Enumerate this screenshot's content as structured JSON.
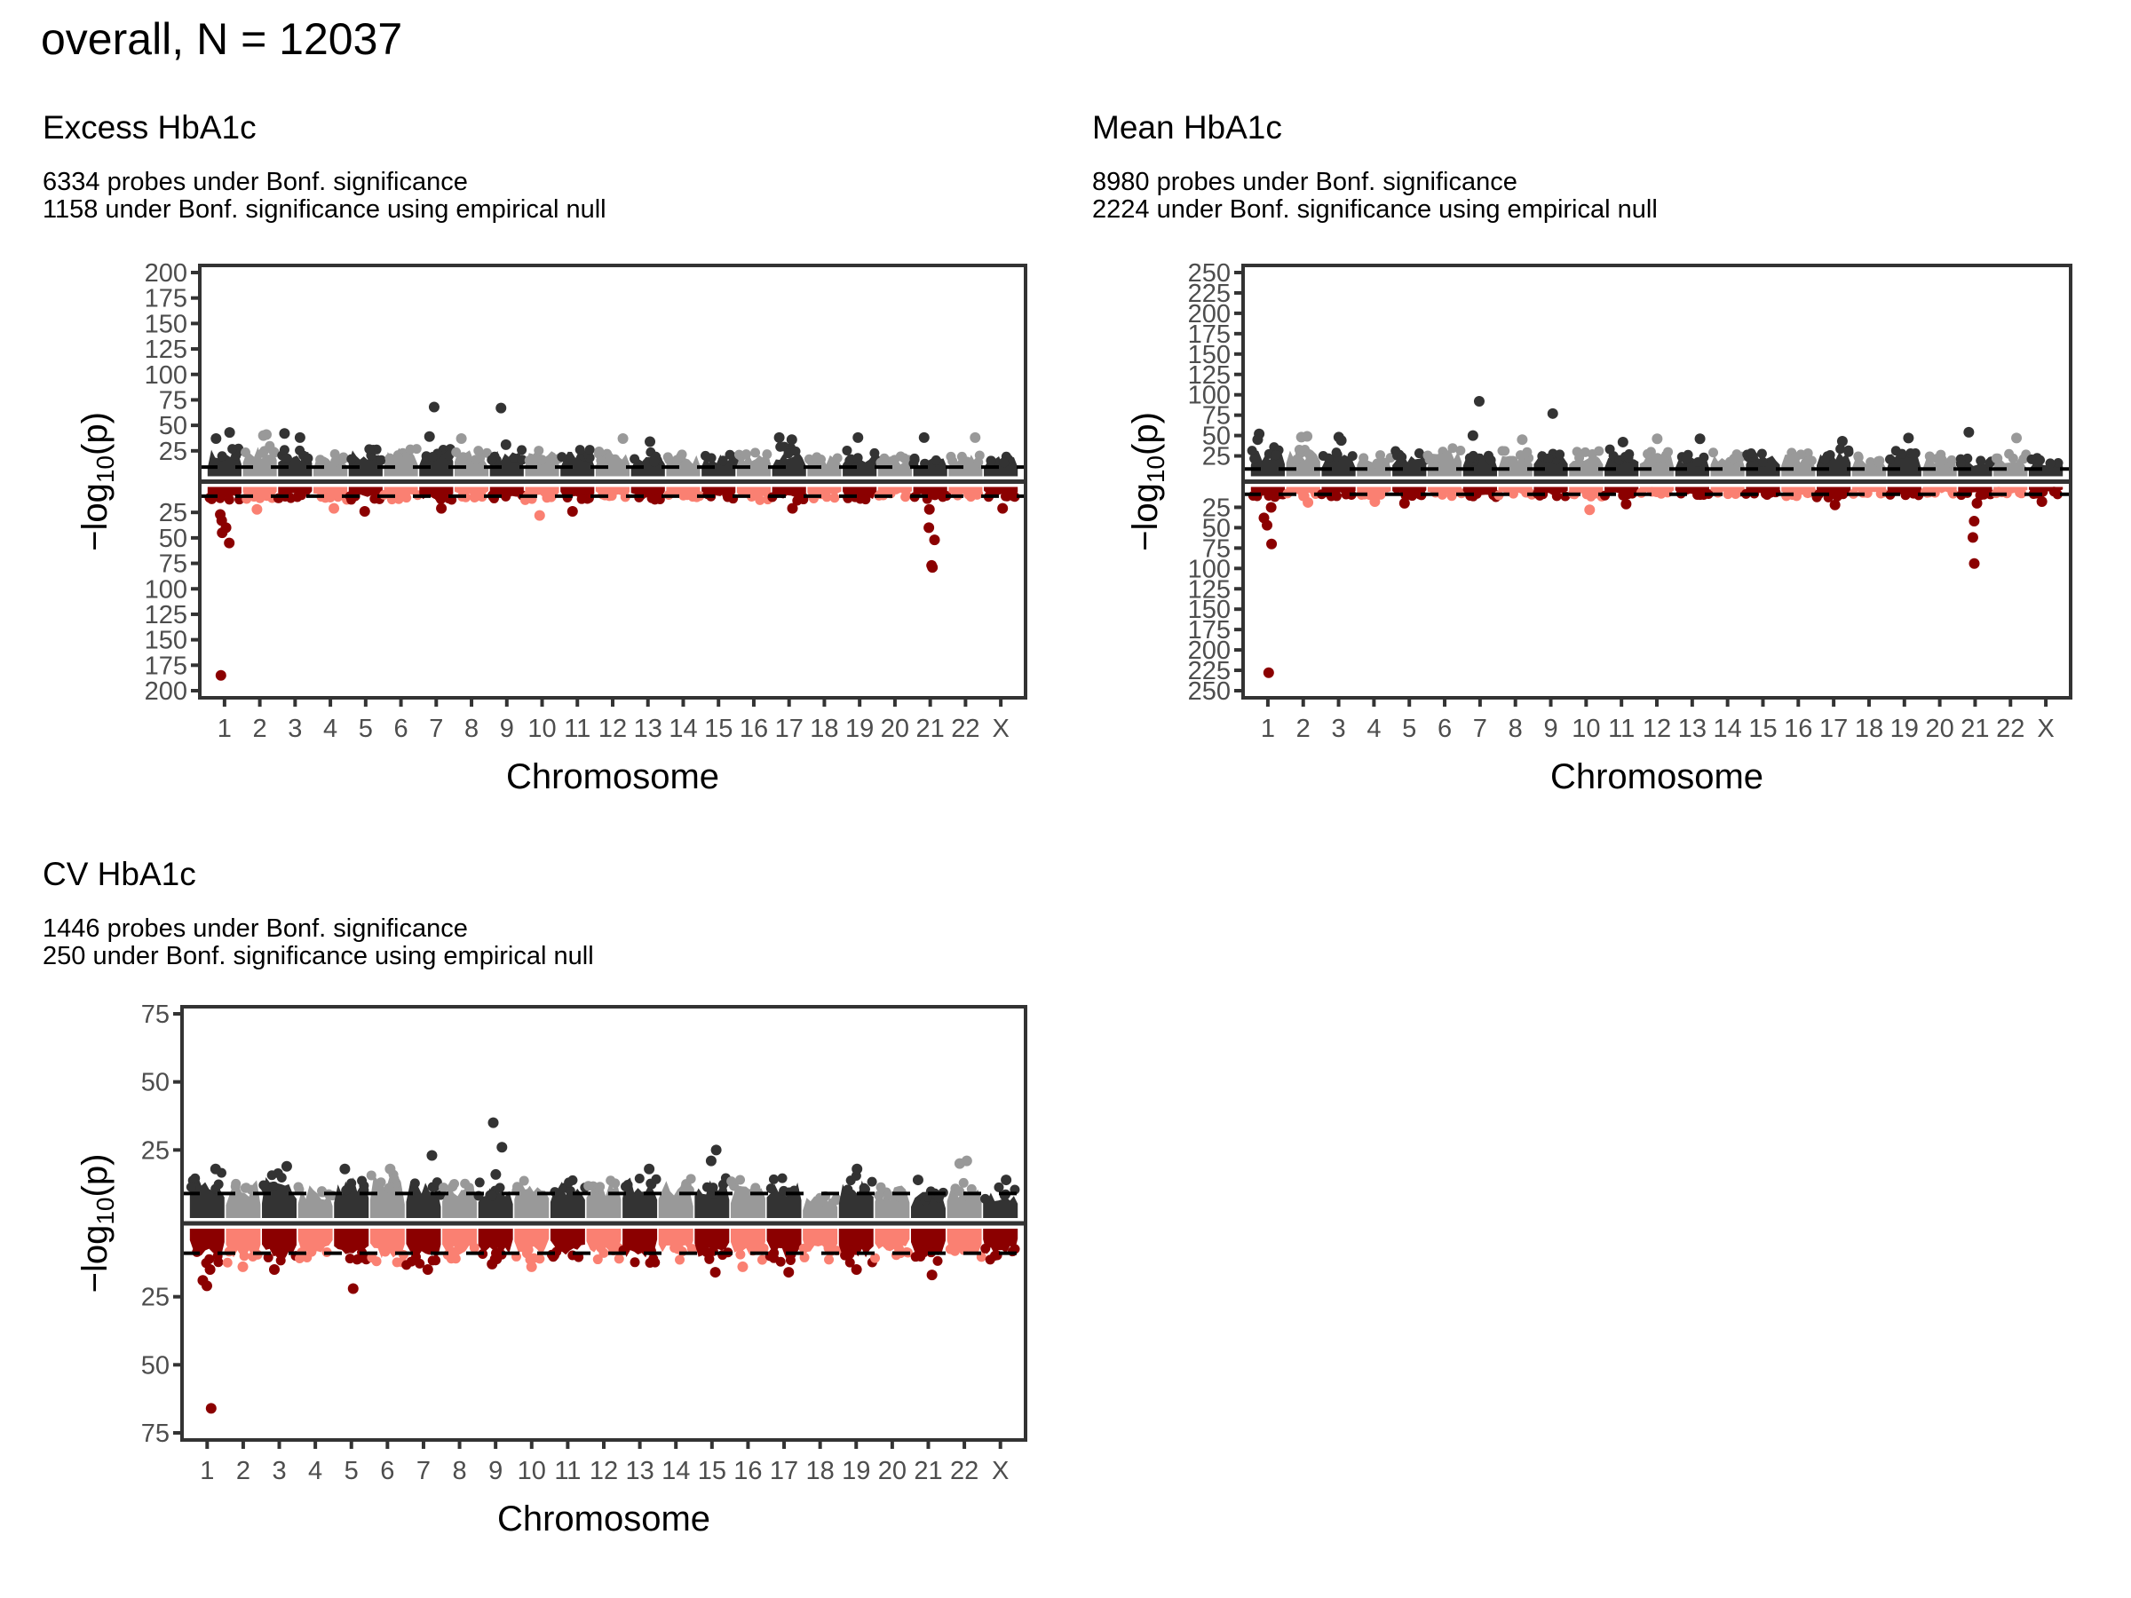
{
  "figure": {
    "title": "overall, N = 12037"
  },
  "colors": {
    "upper_dark": "#333333",
    "upper_light": "#999999",
    "lower_dark": "#8B0000",
    "lower_light": "#FA8072",
    "frame": "#333333",
    "threshold_line": "#000000"
  },
  "chart_data": [
    {
      "type": "scatter",
      "id": "excess",
      "title": "Excess HbA1c",
      "subtitle_lines": [
        "6334 probes under Bonf. significance",
        "1158 under Bonf. significance using empirical null"
      ],
      "xlabel": "Chromosome",
      "ylabel": "-log10(p)",
      "ylim_upper": [
        0,
        200
      ],
      "ylim_lower": [
        0,
        200
      ],
      "yticks": [
        25,
        50,
        75,
        100,
        125,
        150,
        175,
        200
      ],
      "categories": [
        "1",
        "2",
        "3",
        "4",
        "5",
        "6",
        "7",
        "8",
        "9",
        "10",
        "11",
        "12",
        "13",
        "14",
        "15",
        "16",
        "17",
        "18",
        "19",
        "20",
        "21",
        "22",
        "X"
      ],
      "threshold": 9,
      "bulk_upper": [
        27,
        30,
        25,
        22,
        26,
        28,
        28,
        27,
        26,
        25,
        27,
        25,
        23,
        22,
        23,
        24,
        28,
        21,
        25,
        21,
        18,
        22,
        20
      ],
      "bulk_lower": [
        13,
        11,
        10,
        11,
        12,
        11,
        12,
        10,
        10,
        12,
        11,
        10,
        11,
        9,
        10,
        12,
        12,
        10,
        12,
        9,
        11,
        9,
        9
      ],
      "outliers_upper": [
        {
          "chr": "1",
          "y": 43
        },
        {
          "chr": "1",
          "y": 37
        },
        {
          "chr": "2",
          "y": 40
        },
        {
          "chr": "2",
          "y": 41
        },
        {
          "chr": "3",
          "y": 42
        },
        {
          "chr": "3",
          "y": 38
        },
        {
          "chr": "7",
          "y": 68
        },
        {
          "chr": "7",
          "y": 39
        },
        {
          "chr": "8",
          "y": 37
        },
        {
          "chr": "9",
          "y": 67
        },
        {
          "chr": "9",
          "y": 31
        },
        {
          "chr": "12",
          "y": 37
        },
        {
          "chr": "13",
          "y": 34
        },
        {
          "chr": "17",
          "y": 36
        },
        {
          "chr": "17",
          "y": 38
        },
        {
          "chr": "19",
          "y": 38
        },
        {
          "chr": "21",
          "y": 38
        },
        {
          "chr": "22",
          "y": 38
        }
      ],
      "outliers_lower": [
        {
          "chr": "1",
          "y": 27
        },
        {
          "chr": "1",
          "y": 33
        },
        {
          "chr": "1",
          "y": 40
        },
        {
          "chr": "1",
          "y": 45
        },
        {
          "chr": "1",
          "y": 55
        },
        {
          "chr": "1",
          "y": 185
        },
        {
          "chr": "2",
          "y": 22
        },
        {
          "chr": "4",
          "y": 21
        },
        {
          "chr": "5",
          "y": 24
        },
        {
          "chr": "7",
          "y": 21
        },
        {
          "chr": "10",
          "y": 28
        },
        {
          "chr": "11",
          "y": 24
        },
        {
          "chr": "17",
          "y": 21
        },
        {
          "chr": "21",
          "y": 22
        },
        {
          "chr": "21",
          "y": 40
        },
        {
          "chr": "21",
          "y": 52
        },
        {
          "chr": "21",
          "y": 77
        },
        {
          "chr": "21",
          "y": 79
        },
        {
          "chr": "X",
          "y": 21
        }
      ]
    },
    {
      "type": "scatter",
      "id": "mean",
      "title": "Mean HbA1c",
      "subtitle_lines": [
        "8980 probes under Bonf. significance",
        "2224 under Bonf. significance using empirical null"
      ],
      "xlabel": "Chromosome",
      "ylabel": "-log10(p)",
      "ylim_upper": [
        0,
        250
      ],
      "ylim_lower": [
        0,
        250
      ],
      "yticks": [
        25,
        50,
        75,
        100,
        125,
        150,
        175,
        200,
        225,
        250
      ],
      "categories": [
        "1",
        "2",
        "3",
        "4",
        "5",
        "6",
        "7",
        "8",
        "9",
        "10",
        "11",
        "12",
        "13",
        "14",
        "15",
        "16",
        "17",
        "18",
        "19",
        "20",
        "21",
        "22",
        "X"
      ],
      "threshold": 9,
      "bulk_upper": [
        35,
        34,
        31,
        26,
        31,
        33,
        31,
        30,
        32,
        30,
        33,
        31,
        26,
        28,
        27,
        30,
        34,
        24,
        30,
        26,
        22,
        27,
        23
      ],
      "bulk_lower": [
        12,
        10,
        10,
        9,
        10,
        10,
        11,
        9,
        11,
        11,
        10,
        8,
        10,
        8,
        9,
        10,
        12,
        8,
        10,
        8,
        9,
        8,
        8
      ],
      "outliers_upper": [
        {
          "chr": "1",
          "y": 52
        },
        {
          "chr": "1",
          "y": 45
        },
        {
          "chr": "2",
          "y": 48
        },
        {
          "chr": "2",
          "y": 49
        },
        {
          "chr": "3",
          "y": 48
        },
        {
          "chr": "3",
          "y": 44
        },
        {
          "chr": "7",
          "y": 92
        },
        {
          "chr": "7",
          "y": 50
        },
        {
          "chr": "8",
          "y": 45
        },
        {
          "chr": "9",
          "y": 77
        },
        {
          "chr": "11",
          "y": 42
        },
        {
          "chr": "12",
          "y": 46
        },
        {
          "chr": "13",
          "y": 46
        },
        {
          "chr": "17",
          "y": 43
        },
        {
          "chr": "19",
          "y": 47
        },
        {
          "chr": "21",
          "y": 54
        },
        {
          "chr": "22",
          "y": 47
        }
      ],
      "outliers_lower": [
        {
          "chr": "1",
          "y": 25
        },
        {
          "chr": "1",
          "y": 38
        },
        {
          "chr": "1",
          "y": 47
        },
        {
          "chr": "1",
          "y": 70
        },
        {
          "chr": "1",
          "y": 228
        },
        {
          "chr": "2",
          "y": 19
        },
        {
          "chr": "4",
          "y": 18
        },
        {
          "chr": "5",
          "y": 20
        },
        {
          "chr": "10",
          "y": 28
        },
        {
          "chr": "11",
          "y": 21
        },
        {
          "chr": "17",
          "y": 22
        },
        {
          "chr": "21",
          "y": 20
        },
        {
          "chr": "21",
          "y": 42
        },
        {
          "chr": "21",
          "y": 62
        },
        {
          "chr": "21",
          "y": 94
        },
        {
          "chr": "X",
          "y": 18
        }
      ]
    },
    {
      "type": "scatter",
      "id": "cv",
      "title": "CV HbA1c",
      "subtitle_lines": [
        "1446 probes under Bonf. significance",
        "250 under Bonf. significance using empirical null"
      ],
      "xlabel": "Chromosome",
      "ylabel": "-log10(p)",
      "ylim_upper": [
        0,
        75
      ],
      "ylim_lower": [
        0,
        75
      ],
      "yticks": [
        25,
        50,
        75
      ],
      "categories": [
        "1",
        "2",
        "3",
        "4",
        "5",
        "6",
        "7",
        "8",
        "9",
        "10",
        "11",
        "12",
        "13",
        "14",
        "15",
        "16",
        "17",
        "18",
        "19",
        "20",
        "21",
        "22",
        "X"
      ],
      "threshold": 9,
      "bulk_upper": [
        16,
        14,
        16,
        12,
        15,
        16,
        13,
        13,
        13,
        14,
        15,
        14,
        15,
        14,
        15,
        14,
        14,
        9,
        15,
        12,
        10,
        13,
        11
      ],
      "bulk_lower": [
        11,
        12,
        11,
        10,
        11,
        11,
        12,
        10,
        10,
        10,
        10,
        10,
        11,
        10,
        11,
        10,
        11,
        10,
        11,
        10,
        11,
        10,
        10
      ],
      "outliers_upper": [
        {
          "chr": "1",
          "y": 18
        },
        {
          "chr": "3",
          "y": 19
        },
        {
          "chr": "5",
          "y": 18
        },
        {
          "chr": "6",
          "y": 18
        },
        {
          "chr": "7",
          "y": 23
        },
        {
          "chr": "9",
          "y": 35
        },
        {
          "chr": "9",
          "y": 26
        },
        {
          "chr": "9",
          "y": 16
        },
        {
          "chr": "13",
          "y": 18
        },
        {
          "chr": "15",
          "y": 21
        },
        {
          "chr": "15",
          "y": 25
        },
        {
          "chr": "19",
          "y": 18
        },
        {
          "chr": "21",
          "y": 14
        },
        {
          "chr": "22",
          "y": 20
        },
        {
          "chr": "22",
          "y": 21
        },
        {
          "chr": "X",
          "y": 14
        }
      ],
      "outliers_lower": [
        {
          "chr": "1",
          "y": 15
        },
        {
          "chr": "1",
          "y": 19
        },
        {
          "chr": "1",
          "y": 21
        },
        {
          "chr": "1",
          "y": 66
        },
        {
          "chr": "2",
          "y": 14
        },
        {
          "chr": "3",
          "y": 15
        },
        {
          "chr": "5",
          "y": 22
        },
        {
          "chr": "7",
          "y": 15
        },
        {
          "chr": "9",
          "y": 13
        },
        {
          "chr": "10",
          "y": 14
        },
        {
          "chr": "15",
          "y": 16
        },
        {
          "chr": "16",
          "y": 14
        },
        {
          "chr": "17",
          "y": 16
        },
        {
          "chr": "19",
          "y": 15
        },
        {
          "chr": "21",
          "y": 17
        }
      ]
    }
  ]
}
